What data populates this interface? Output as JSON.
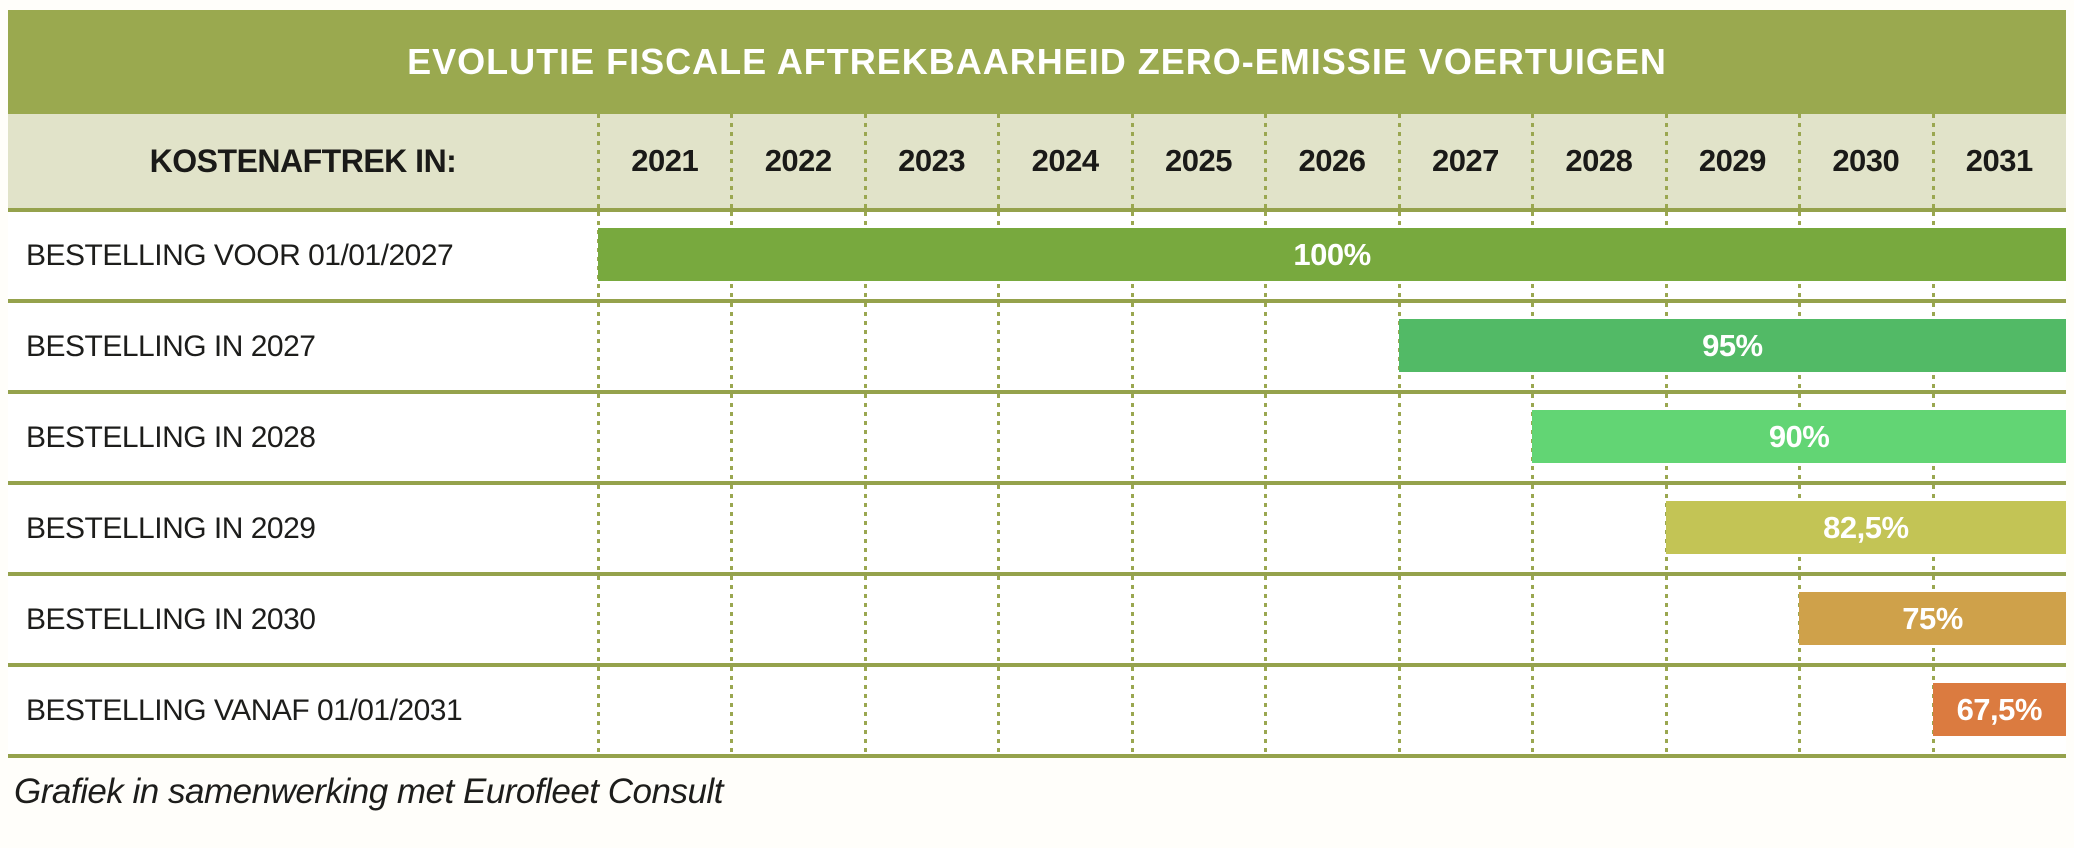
{
  "page": {
    "background": "#fffefa",
    "footer_note": "Grafiek in samenwerking met Eurofleet Consult"
  },
  "table": {
    "title": "EVOLUTIE FISCALE AFTREKBAARHEID ZERO-EMISSIE VOERTUIGEN",
    "header_label": "KOSTENAFTREK IN:",
    "years": [
      "2021",
      "2022",
      "2023",
      "2024",
      "2025",
      "2026",
      "2027",
      "2028",
      "2029",
      "2030",
      "2031"
    ],
    "rows": [
      {
        "label": "BESTELLING VOOR 01/01/2027",
        "value_label": "100%",
        "start_year": 2021,
        "end_year": 2031,
        "color": "#78a93e"
      },
      {
        "label": "BESTELLING IN 2027",
        "value_label": "95%",
        "start_year": 2027,
        "end_year": 2031,
        "color": "#52ba66"
      },
      {
        "label": "BESTELLING IN 2028",
        "value_label": "90%",
        "start_year": 2028,
        "end_year": 2031,
        "color": "#62d574"
      },
      {
        "label": "BESTELLING IN 2029",
        "value_label": "82,5%",
        "start_year": 2029,
        "end_year": 2031,
        "color": "#c3c455"
      },
      {
        "label": "BESTELLING IN 2030",
        "value_label": "75%",
        "start_year": 2030,
        "end_year": 2031,
        "color": "#cfa14a"
      },
      {
        "label": "BESTELLING VANAF 01/01/2031",
        "value_label": "67,5%",
        "start_year": 2031,
        "end_year": 2031,
        "color": "#db7b40"
      }
    ],
    "colors": {
      "title_bar": "#9aa94f",
      "header_bg": "#e1e3c9",
      "separator": "#95a24c",
      "dotted_line": "#9aa750",
      "header_text": "#1a1a18",
      "row_label_text": "#1d1d1b",
      "bar_text": "#ffffff"
    }
  },
  "chart_data": {
    "type": "bar",
    "subtype": "gantt-style horizontal deductibility timeline",
    "title": "EVOLUTIE FISCALE AFTREKBAARHEID ZERO-EMISSIE VOERTUIGEN",
    "x_axis_label": "KOSTENAFTREK IN:",
    "x_categories": [
      2021,
      2022,
      2023,
      2024,
      2025,
      2026,
      2027,
      2028,
      2029,
      2030,
      2031
    ],
    "rows": [
      {
        "category": "BESTELLING VOOR 01/01/2027",
        "deduction_percent": 100,
        "value_label": "100%",
        "bar_start_year": 2021,
        "bar_end_year": 2031,
        "color": "#78a93e"
      },
      {
        "category": "BESTELLING IN 2027",
        "deduction_percent": 95,
        "value_label": "95%",
        "bar_start_year": 2027,
        "bar_end_year": 2031,
        "color": "#52ba66"
      },
      {
        "category": "BESTELLING IN 2028",
        "deduction_percent": 90,
        "value_label": "90%",
        "bar_start_year": 2028,
        "bar_end_year": 2031,
        "color": "#62d574"
      },
      {
        "category": "BESTELLING IN 2029",
        "deduction_percent": 82.5,
        "value_label": "82,5%",
        "bar_start_year": 2029,
        "bar_end_year": 2031,
        "color": "#c3c455"
      },
      {
        "category": "BESTELLING IN 2030",
        "deduction_percent": 75,
        "value_label": "75%",
        "bar_start_year": 2030,
        "bar_end_year": 2031,
        "color": "#cfa14a"
      },
      {
        "category": "BESTELLING VANAF 01/01/2031",
        "deduction_percent": 67.5,
        "value_label": "67,5%",
        "bar_start_year": 2031,
        "bar_end_year": 2031,
        "color": "#db7b40"
      }
    ],
    "grid": "dotted vertical lines at each year column boundary",
    "legend_position": "none",
    "annotation": "Grafiek in samenwerking met Eurofleet Consult"
  }
}
